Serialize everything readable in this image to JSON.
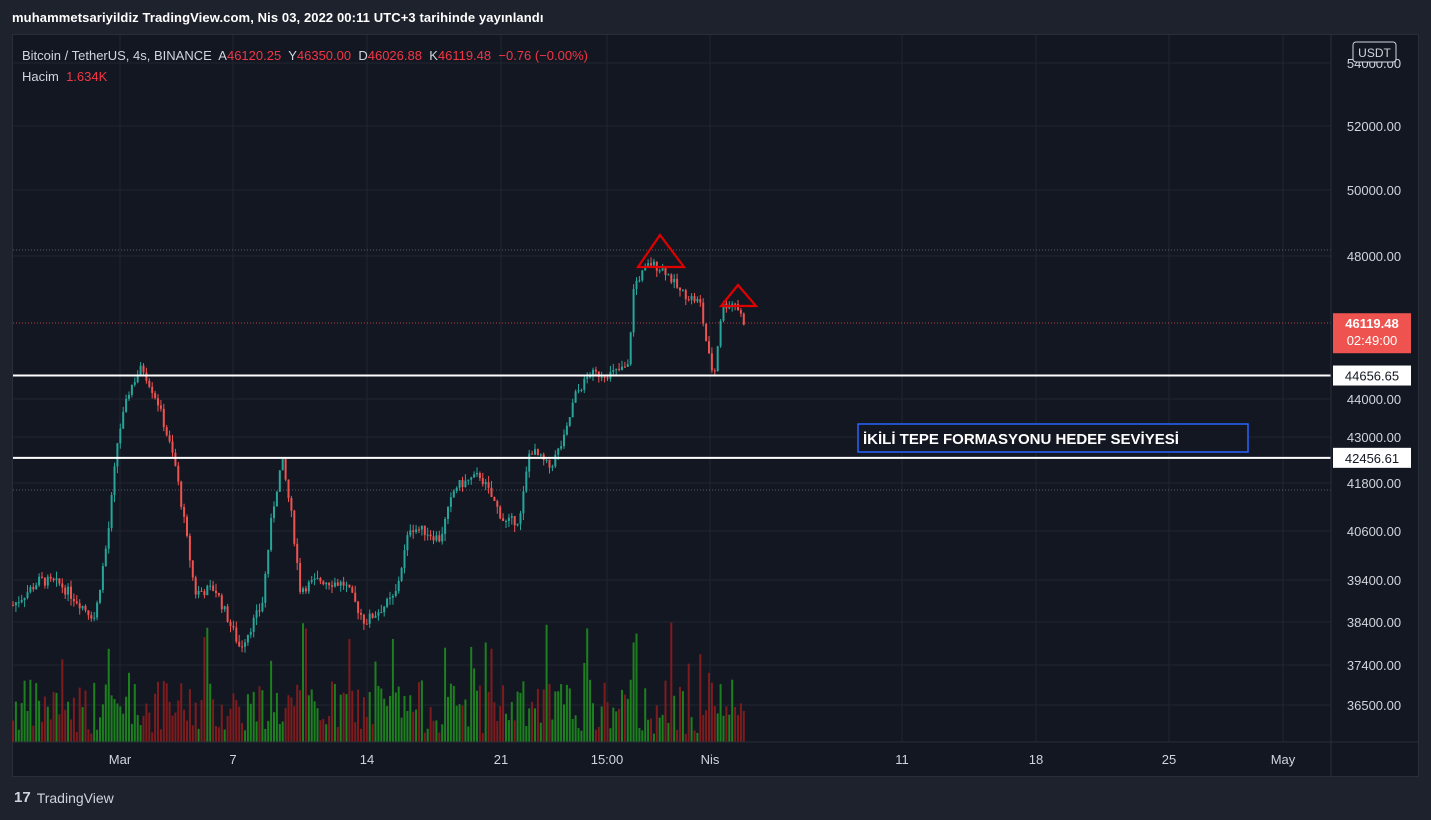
{
  "header": {
    "publish_line": "muhammetsariyildiz TradingView.com, Nis 03, 2022 00:11 UTC+3 tarihinde yayınlandı"
  },
  "legend": {
    "symbol": "Bitcoin / TetherUS, 4s, BINANCE",
    "open_label": "A",
    "open": "46120.25",
    "high_label": "Y",
    "high": "46350.00",
    "low_label": "D",
    "low": "46026.88",
    "close_label": "K",
    "close": "46119.48",
    "change": "−0.76 (−0.00%)",
    "volume_label": "Hacim",
    "volume": "1.634K"
  },
  "currency_badge": "USDT",
  "footer": {
    "brand": "TradingView",
    "logo_glyph": "17"
  },
  "chart_data": {
    "type": "candlestick",
    "colors": {
      "up": "#26a69a",
      "down": "#ef5350",
      "vol_up": "#1f8c1f",
      "vol_down": "#8b1d1d",
      "level": "#ffffff",
      "pattern": "#e00000",
      "annotation_border": "#2962ff",
      "price_tag": "#ef5350"
    },
    "y_axis": {
      "ticks": [
        {
          "label": "54000.00",
          "value": 54000
        },
        {
          "label": "52000.00",
          "value": 52000
        },
        {
          "label": "50000.00",
          "value": 50000
        },
        {
          "label": "48000.00",
          "value": 48000
        },
        {
          "label": "44000.00",
          "value": 44000
        },
        {
          "label": "43000.00",
          "value": 43000
        },
        {
          "label": "41800.00",
          "value": 41800
        },
        {
          "label": "40600.00",
          "value": 40600
        },
        {
          "label": "39400.00",
          "value": 39400
        },
        {
          "label": "38400.00",
          "value": 38400
        },
        {
          "label": "37400.00",
          "value": 37400
        },
        {
          "label": "36500.00",
          "value": 36500
        }
      ]
    },
    "x_axis": {
      "ticks": [
        "Mar",
        "7",
        "14",
        "21",
        "15:00",
        "Nis",
        "11",
        "18",
        "25",
        "May"
      ]
    },
    "levels": [
      {
        "label": "44656.65",
        "value": 44656.65
      },
      {
        "label": "42456.61",
        "value": 42456.61
      }
    ],
    "last_price": {
      "label": "46119.48",
      "countdown": "02:49:00",
      "value": 46119.48
    },
    "annotation": "İKİLİ TEPE FORMASYONU HEDEF SEVİYESİ",
    "pattern": "double top (two triangles marking peaks)"
  }
}
